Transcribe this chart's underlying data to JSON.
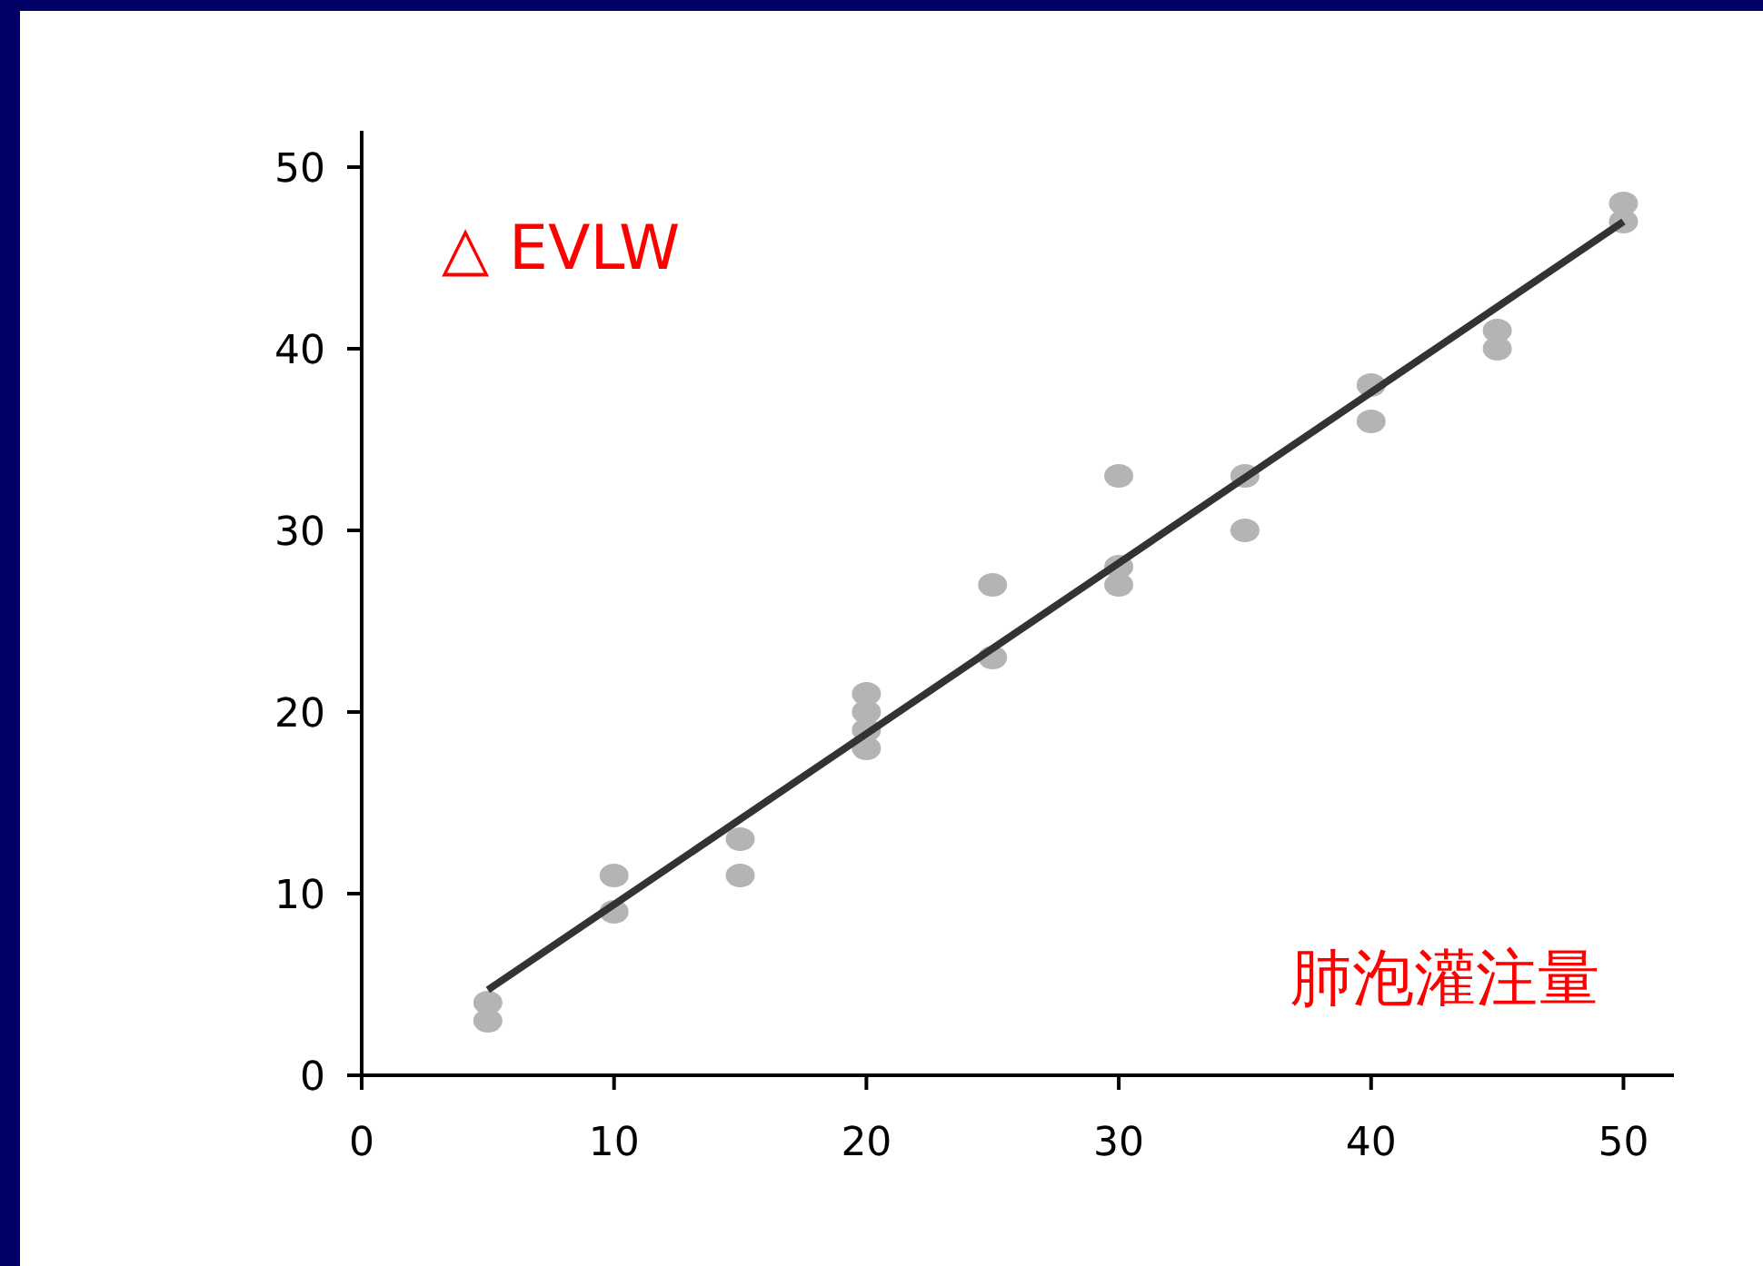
{
  "chart_data": {
    "type": "scatter",
    "xlabel": "肺泡灌注量",
    "ylabel": "△ EVLW",
    "xlim": [
      0,
      52
    ],
    "ylim": [
      0,
      52
    ],
    "xticks": [
      0,
      10,
      20,
      30,
      40,
      50
    ],
    "yticks": [
      0,
      10,
      20,
      30,
      40,
      50
    ],
    "grid": false,
    "series": [
      {
        "marker": "circle",
        "color": "#b4b4b4",
        "x": [
          5,
          5,
          10,
          10,
          15,
          15,
          20,
          20,
          20,
          20,
          25,
          25,
          30,
          30,
          30,
          35,
          35,
          40,
          40,
          45,
          45,
          50,
          50
        ],
        "values": [
          4,
          3,
          11,
          9,
          13,
          11,
          21,
          20,
          19,
          18,
          27,
          23,
          33,
          28,
          27,
          33,
          30,
          38,
          36,
          41,
          40,
          48,
          47
        ]
      },
      {
        "type": "line",
        "color": "#333333",
        "x": [
          5,
          50
        ],
        "values": [
          4.7,
          47
        ]
      }
    ]
  }
}
